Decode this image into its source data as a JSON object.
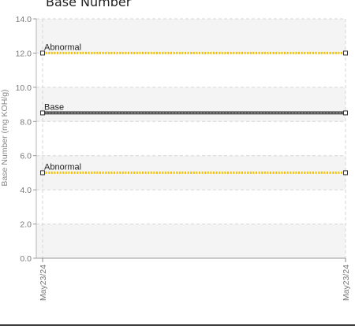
{
  "chart_data": {
    "type": "line",
    "title": "Base Number",
    "xlabel": "",
    "ylabel": "Base Number (mg KOH/g)",
    "ylim": [
      0,
      14
    ],
    "yticks": [
      "0.0",
      "2.0",
      "4.0",
      "6.0",
      "8.0",
      "10.0",
      "12.0",
      "14.0"
    ],
    "categories": [
      "May23/24",
      "May23/24"
    ],
    "grid": true,
    "series": [
      {
        "name": "Abnormal",
        "values": [
          12.0,
          12.0
        ],
        "color": "#f2c200",
        "style": "dotted"
      },
      {
        "name": "Base",
        "values": [
          8.5,
          8.5
        ],
        "color": "#555555",
        "style": "solid"
      },
      {
        "name": "Abnormal",
        "values": [
          5.0,
          5.0
        ],
        "color": "#f2c200",
        "style": "dotted"
      }
    ]
  }
}
